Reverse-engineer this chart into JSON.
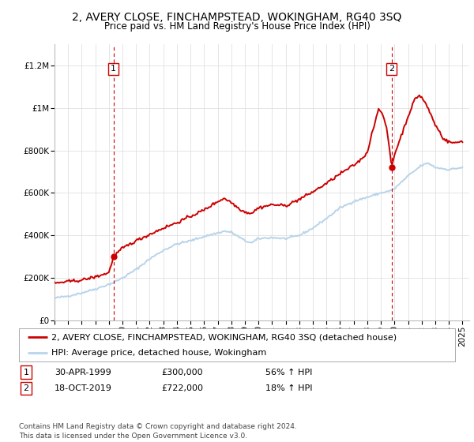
{
  "title": "2, AVERY CLOSE, FINCHAMPSTEAD, WOKINGHAM, RG40 3SQ",
  "subtitle": "Price paid vs. HM Land Registry's House Price Index (HPI)",
  "ylim": [
    0,
    1300000
  ],
  "yticks": [
    0,
    200000,
    400000,
    600000,
    800000,
    1000000,
    1200000
  ],
  "ytick_labels": [
    "£0",
    "£200K",
    "£400K",
    "£600K",
    "£800K",
    "£1M",
    "£1.2M"
  ],
  "hpi_color": "#b8d4ea",
  "price_color": "#cc0000",
  "annotation_color": "#cc0000",
  "sale1_date": 1999.33,
  "sale1_price": 300000,
  "sale1_label": "1",
  "sale2_date": 2019.79,
  "sale2_price": 722000,
  "sale2_label": "2",
  "legend_label_price": "2, AVERY CLOSE, FINCHAMPSTEAD, WOKINGHAM, RG40 3SQ (detached house)",
  "legend_label_hpi": "HPI: Average price, detached house, Wokingham",
  "table_row1": [
    "1",
    "30-APR-1999",
    "£300,000",
    "56% ↑ HPI"
  ],
  "table_row2": [
    "2",
    "18-OCT-2019",
    "£722,000",
    "18% ↑ HPI"
  ],
  "footer": "Contains HM Land Registry data © Crown copyright and database right 2024.\nThis data is licensed under the Open Government Licence v3.0.",
  "bg_color": "#ffffff",
  "grid_color": "#e0e0e0",
  "title_fontsize": 10,
  "subtitle_fontsize": 8.5,
  "tick_fontsize": 7.5,
  "legend_fontsize": 8,
  "table_fontsize": 8,
  "footer_fontsize": 6.5
}
